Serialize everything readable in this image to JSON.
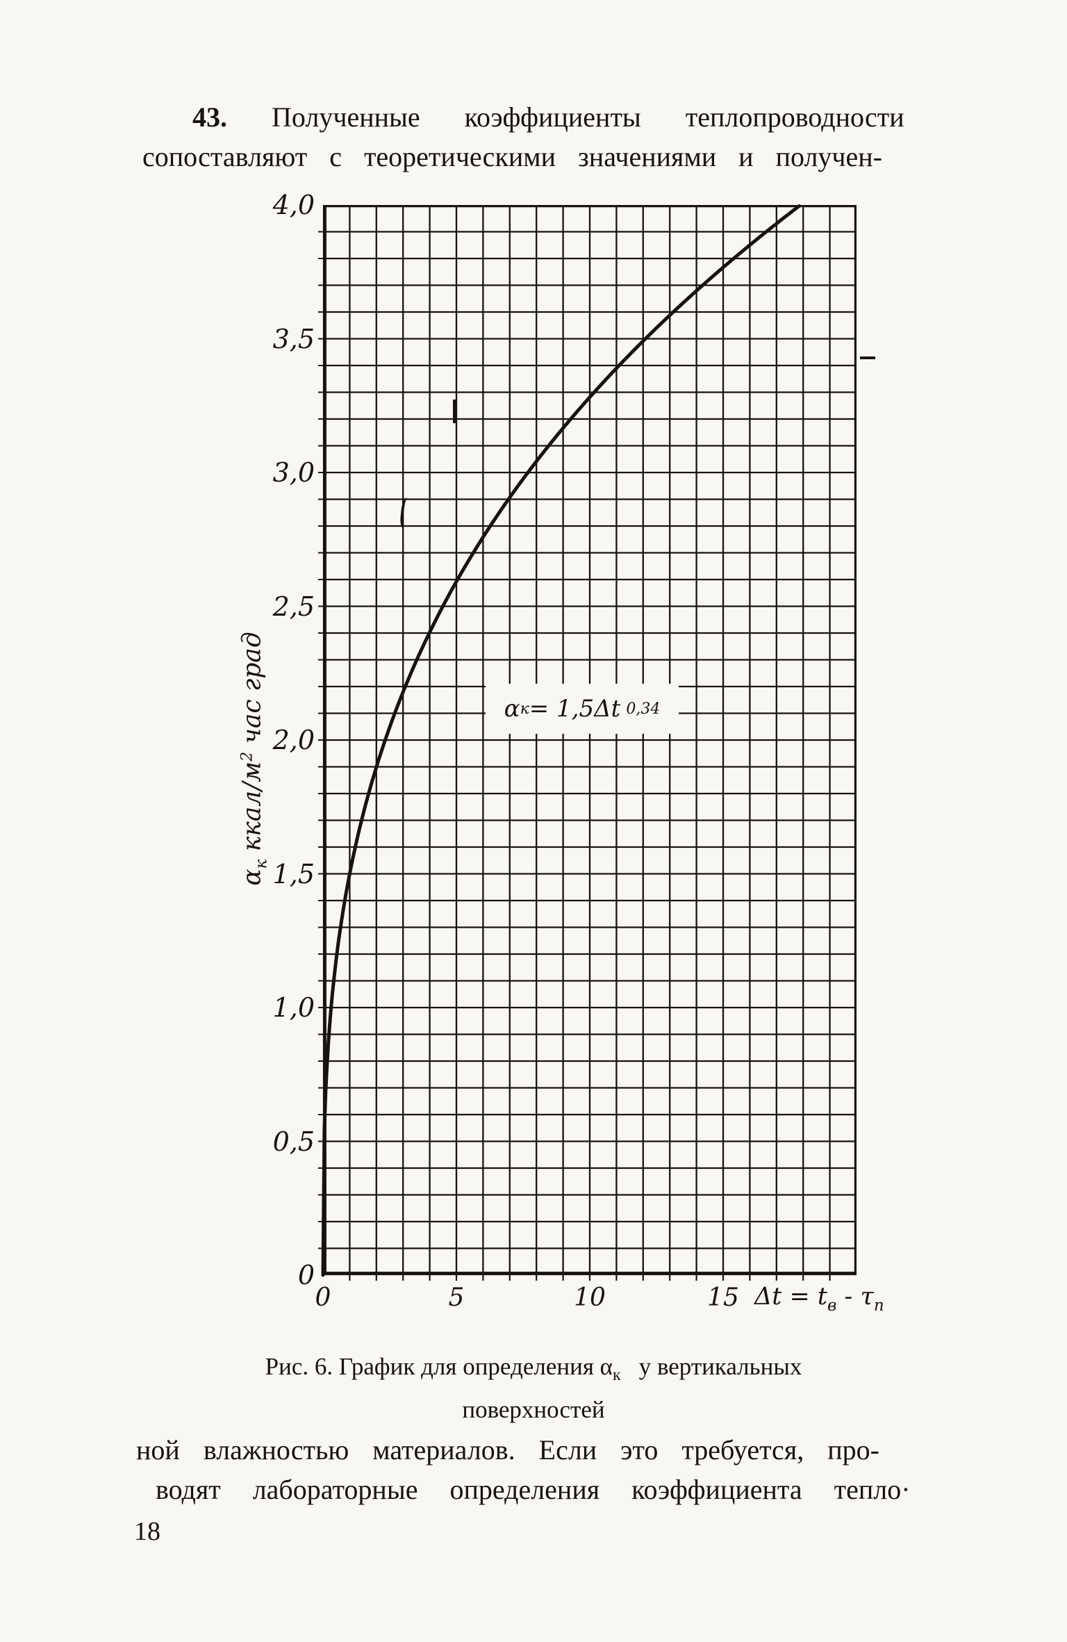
{
  "page": {
    "number": "18",
    "background": "#f8f7f2",
    "ink": "#17130e"
  },
  "paragraph_top": {
    "number": "43.",
    "line1_rest": "Полученные коэффициенты теплопроводности",
    "line2": "сопоставляют с теоретическими значениями и получен-"
  },
  "chart_data": {
    "type": "line",
    "title": "",
    "ylabel_text": "αк ккал/м² час град",
    "ylabel_parts": {
      "sym": "α",
      "sym_sub": "к",
      "unit_a": " ккал/м",
      "unit_sup": "2",
      "unit_b": " час град"
    },
    "xlabel_text": "Δt = tв - τп",
    "xlabel_parts": {
      "a": "Δt = t",
      "a_sub": "в",
      "b": " - τ",
      "b_sub": "п"
    },
    "xlim": [
      0,
      20
    ],
    "ylim": [
      0,
      4.0
    ],
    "grid": {
      "on": true,
      "step_x": 1,
      "step_y": 0.1
    },
    "x_ticks": [
      {
        "value": 0,
        "label": "0"
      },
      {
        "value": 5,
        "label": "5"
      },
      {
        "value": 10,
        "label": "10"
      },
      {
        "value": 15,
        "label": "15"
      }
    ],
    "y_ticks": [
      {
        "value": 4.0,
        "label": "4,0"
      },
      {
        "value": 3.5,
        "label": "3,5"
      },
      {
        "value": 3.0,
        "label": "3,0"
      },
      {
        "value": 2.5,
        "label": "2,5"
      },
      {
        "value": 2.0,
        "label": "2,0"
      },
      {
        "value": 1.5,
        "label": "1,5"
      },
      {
        "value": 1.0,
        "label": "1,0"
      },
      {
        "value": 0.5,
        "label": "0,5"
      },
      {
        "value": 0,
        "label": "0"
      }
    ],
    "curve": {
      "formula_text": "αк = 1,5Δt^0,34",
      "coef": 1.5,
      "exponent": 0.34,
      "t_start": 0,
      "t_end": 17.9
    },
    "annotation_parts": {
      "sym": "α",
      "sym_sub": "к",
      "mid": " = 1,5Δt",
      "sup": "0,34"
    },
    "sample_points": {
      "dt": [
        0,
        1,
        2,
        3,
        4,
        5,
        6,
        7,
        8,
        9,
        10,
        11,
        12,
        13,
        14,
        15,
        16,
        17,
        17.9
      ],
      "alpha": [
        0,
        1.5,
        1.9,
        2.18,
        2.4,
        2.59,
        2.76,
        2.91,
        3.04,
        3.17,
        3.28,
        3.39,
        3.49,
        3.59,
        3.68,
        3.77,
        3.85,
        3.93,
        4.0
      ]
    },
    "legend": null
  },
  "figure_caption": {
    "line1_prefix": "Рис. 6. График для определения ",
    "alpha": "α",
    "alpha_sub": "к",
    "line1_suffix": "у вертикальных",
    "line2": "поверхностей"
  },
  "paragraph_bottom": {
    "line1": "ной влажностью материалов. Если это требуется, про-",
    "line2": "водят лабораторные определения коэффициента тепло·"
  }
}
